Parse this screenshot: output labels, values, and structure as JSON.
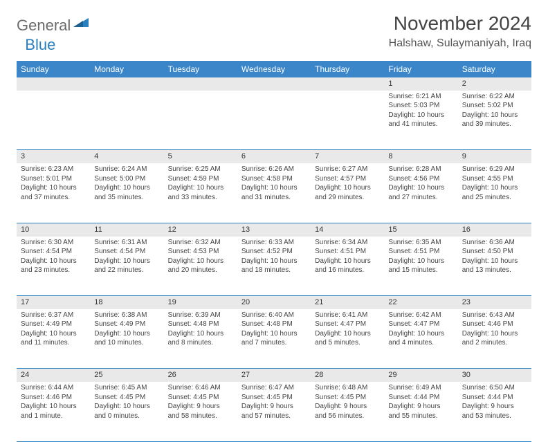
{
  "logo": {
    "text1": "General",
    "text2": "Blue"
  },
  "title": "November 2024",
  "location": "Halshaw, Sulaymaniyah, Iraq",
  "colors": {
    "header_bg": "#3a86c8",
    "header_text": "#ffffff",
    "daynum_bg": "#e9e9e9",
    "cell_border": "#2a7fbf",
    "body_text": "#444444",
    "logo_gray": "#6a6a6a",
    "logo_blue": "#2a7fbf"
  },
  "fonts": {
    "title_size_pt": 21,
    "location_size_pt": 12,
    "header_size_pt": 9,
    "cell_size_pt": 7.5
  },
  "day_headers": [
    "Sunday",
    "Monday",
    "Tuesday",
    "Wednesday",
    "Thursday",
    "Friday",
    "Saturday"
  ],
  "weeks": [
    [
      null,
      null,
      null,
      null,
      null,
      {
        "n": "1",
        "sunrise": "6:21 AM",
        "sunset": "5:03 PM",
        "daylight": "10 hours and 41 minutes."
      },
      {
        "n": "2",
        "sunrise": "6:22 AM",
        "sunset": "5:02 PM",
        "daylight": "10 hours and 39 minutes."
      }
    ],
    [
      {
        "n": "3",
        "sunrise": "6:23 AM",
        "sunset": "5:01 PM",
        "daylight": "10 hours and 37 minutes."
      },
      {
        "n": "4",
        "sunrise": "6:24 AM",
        "sunset": "5:00 PM",
        "daylight": "10 hours and 35 minutes."
      },
      {
        "n": "5",
        "sunrise": "6:25 AM",
        "sunset": "4:59 PM",
        "daylight": "10 hours and 33 minutes."
      },
      {
        "n": "6",
        "sunrise": "6:26 AM",
        "sunset": "4:58 PM",
        "daylight": "10 hours and 31 minutes."
      },
      {
        "n": "7",
        "sunrise": "6:27 AM",
        "sunset": "4:57 PM",
        "daylight": "10 hours and 29 minutes."
      },
      {
        "n": "8",
        "sunrise": "6:28 AM",
        "sunset": "4:56 PM",
        "daylight": "10 hours and 27 minutes."
      },
      {
        "n": "9",
        "sunrise": "6:29 AM",
        "sunset": "4:55 PM",
        "daylight": "10 hours and 25 minutes."
      }
    ],
    [
      {
        "n": "10",
        "sunrise": "6:30 AM",
        "sunset": "4:54 PM",
        "daylight": "10 hours and 23 minutes."
      },
      {
        "n": "11",
        "sunrise": "6:31 AM",
        "sunset": "4:54 PM",
        "daylight": "10 hours and 22 minutes."
      },
      {
        "n": "12",
        "sunrise": "6:32 AM",
        "sunset": "4:53 PM",
        "daylight": "10 hours and 20 minutes."
      },
      {
        "n": "13",
        "sunrise": "6:33 AM",
        "sunset": "4:52 PM",
        "daylight": "10 hours and 18 minutes."
      },
      {
        "n": "14",
        "sunrise": "6:34 AM",
        "sunset": "4:51 PM",
        "daylight": "10 hours and 16 minutes."
      },
      {
        "n": "15",
        "sunrise": "6:35 AM",
        "sunset": "4:51 PM",
        "daylight": "10 hours and 15 minutes."
      },
      {
        "n": "16",
        "sunrise": "6:36 AM",
        "sunset": "4:50 PM",
        "daylight": "10 hours and 13 minutes."
      }
    ],
    [
      {
        "n": "17",
        "sunrise": "6:37 AM",
        "sunset": "4:49 PM",
        "daylight": "10 hours and 11 minutes."
      },
      {
        "n": "18",
        "sunrise": "6:38 AM",
        "sunset": "4:49 PM",
        "daylight": "10 hours and 10 minutes."
      },
      {
        "n": "19",
        "sunrise": "6:39 AM",
        "sunset": "4:48 PM",
        "daylight": "10 hours and 8 minutes."
      },
      {
        "n": "20",
        "sunrise": "6:40 AM",
        "sunset": "4:48 PM",
        "daylight": "10 hours and 7 minutes."
      },
      {
        "n": "21",
        "sunrise": "6:41 AM",
        "sunset": "4:47 PM",
        "daylight": "10 hours and 5 minutes."
      },
      {
        "n": "22",
        "sunrise": "6:42 AM",
        "sunset": "4:47 PM",
        "daylight": "10 hours and 4 minutes."
      },
      {
        "n": "23",
        "sunrise": "6:43 AM",
        "sunset": "4:46 PM",
        "daylight": "10 hours and 2 minutes."
      }
    ],
    [
      {
        "n": "24",
        "sunrise": "6:44 AM",
        "sunset": "4:46 PM",
        "daylight": "10 hours and 1 minute."
      },
      {
        "n": "25",
        "sunrise": "6:45 AM",
        "sunset": "4:45 PM",
        "daylight": "10 hours and 0 minutes."
      },
      {
        "n": "26",
        "sunrise": "6:46 AM",
        "sunset": "4:45 PM",
        "daylight": "9 hours and 58 minutes."
      },
      {
        "n": "27",
        "sunrise": "6:47 AM",
        "sunset": "4:45 PM",
        "daylight": "9 hours and 57 minutes."
      },
      {
        "n": "28",
        "sunrise": "6:48 AM",
        "sunset": "4:45 PM",
        "daylight": "9 hours and 56 minutes."
      },
      {
        "n": "29",
        "sunrise": "6:49 AM",
        "sunset": "4:44 PM",
        "daylight": "9 hours and 55 minutes."
      },
      {
        "n": "30",
        "sunrise": "6:50 AM",
        "sunset": "4:44 PM",
        "daylight": "9 hours and 53 minutes."
      }
    ]
  ],
  "labels": {
    "sunrise": "Sunrise: ",
    "sunset": "Sunset: ",
    "daylight": "Daylight: "
  }
}
